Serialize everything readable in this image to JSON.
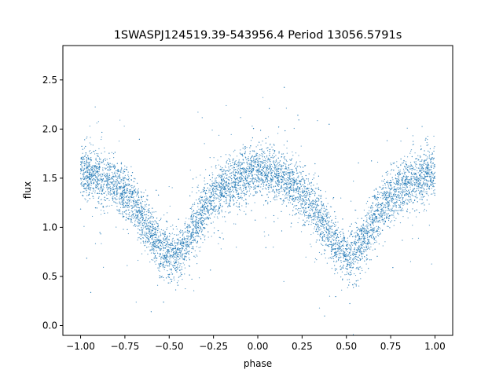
{
  "chart_data": {
    "type": "scatter",
    "title": "1SWASPJ124519.39-543956.4 Period 13056.5791s",
    "xlabel": "phase",
    "ylabel": "flux",
    "xlim": [
      -1.1,
      1.1
    ],
    "ylim": [
      -0.1,
      2.85
    ],
    "xticks": [
      -1.0,
      -0.75,
      -0.5,
      -0.25,
      0.0,
      0.25,
      0.5,
      0.75,
      1.0
    ],
    "xtick_labels": [
      "−1.00",
      "−0.75",
      "−0.50",
      "−0.25",
      "0.00",
      "0.25",
      "0.50",
      "0.75",
      "1.00"
    ],
    "yticks": [
      0.0,
      0.5,
      1.0,
      1.5,
      2.0,
      2.5
    ],
    "ytick_labels": [
      "0.0",
      "0.5",
      "1.0",
      "1.5",
      "2.0",
      "2.5"
    ],
    "grid": false,
    "marker_color": "#1f77b4",
    "series": [
      {
        "x": [
          -1.0,
          -0.95,
          -0.9,
          -0.85,
          -0.8,
          -0.75,
          -0.7,
          -0.65,
          -0.6,
          -0.55,
          -0.5,
          -0.45,
          -0.4,
          -0.35,
          -0.3,
          -0.25,
          -0.2,
          -0.15,
          -0.1,
          -0.05,
          0.0,
          0.05,
          0.1,
          0.15,
          0.2,
          0.25,
          0.3,
          0.35,
          0.4,
          0.45,
          0.5,
          0.55,
          0.6,
          0.65,
          0.7,
          0.75,
          0.8,
          0.85,
          0.9,
          0.95,
          1.0
        ],
        "y": [
          1.55,
          1.55,
          1.52,
          1.48,
          1.42,
          1.36,
          1.25,
          1.1,
          0.95,
          0.78,
          0.7,
          0.72,
          0.85,
          1.05,
          1.18,
          1.3,
          1.4,
          1.45,
          1.5,
          1.55,
          1.56,
          1.55,
          1.52,
          1.48,
          1.42,
          1.36,
          1.25,
          1.1,
          0.95,
          0.78,
          0.7,
          0.72,
          0.85,
          1.05,
          1.18,
          1.3,
          1.4,
          1.45,
          1.5,
          1.55,
          1.56
        ]
      }
    ]
  }
}
